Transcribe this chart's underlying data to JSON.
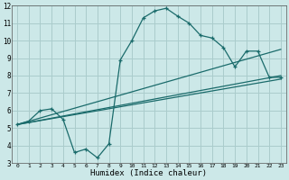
{
  "xlabel": "Humidex (Indice chaleur)",
  "bg_color": "#cce8e8",
  "grid_color": "#aacccc",
  "line_color": "#1a6b6b",
  "xlim": [
    -0.5,
    23.5
  ],
  "ylim": [
    3,
    12
  ],
  "xticks": [
    0,
    1,
    2,
    3,
    4,
    5,
    6,
    7,
    8,
    9,
    10,
    11,
    12,
    13,
    14,
    15,
    16,
    17,
    18,
    19,
    20,
    21,
    22,
    23
  ],
  "yticks": [
    3,
    4,
    5,
    6,
    7,
    8,
    9,
    10,
    11,
    12
  ],
  "main_line_x": [
    0,
    1,
    2,
    3,
    4,
    5,
    6,
    7,
    8,
    9,
    10,
    11,
    12,
    13,
    14,
    15,
    16,
    17,
    18,
    19,
    20,
    21,
    22,
    23
  ],
  "main_line_y": [
    5.2,
    5.4,
    6.0,
    6.1,
    5.5,
    3.6,
    3.8,
    3.3,
    4.1,
    8.9,
    10.0,
    11.3,
    11.7,
    11.85,
    11.4,
    11.0,
    10.3,
    10.15,
    9.6,
    8.5,
    9.4,
    9.4,
    7.9,
    7.9
  ],
  "line2_x": [
    0,
    23
  ],
  "line2_y": [
    5.2,
    9.5
  ],
  "line3_x": [
    0,
    23
  ],
  "line3_y": [
    5.2,
    8.0
  ],
  "line4_x": [
    0,
    23
  ],
  "line4_y": [
    5.2,
    7.8
  ]
}
